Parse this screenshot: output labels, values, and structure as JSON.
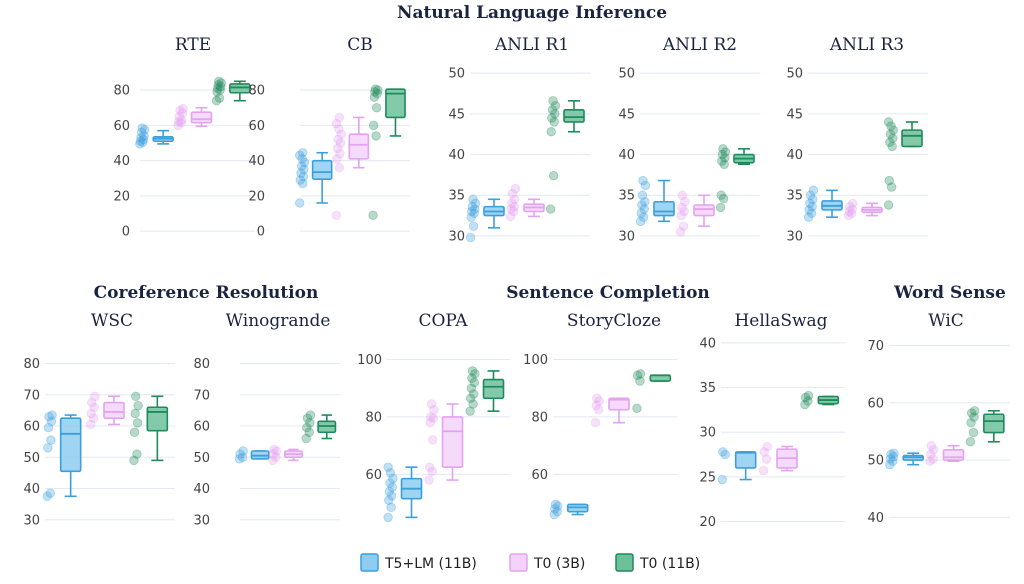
{
  "chart_data": {
    "type": "box",
    "groups": [
      {
        "title": "Natural Language Inference"
      },
      {
        "title": "Coreference Resolution"
      },
      {
        "title": "Sentence Completion"
      },
      {
        "title": "Word Sense"
      }
    ],
    "series": [
      {
        "name": "T5+LM (11B)",
        "color": "#3b9fdc",
        "fill": "#8ecdf0"
      },
      {
        "name": "T0 (3B)",
        "color": "#e3a3f0",
        "fill": "#f3d3fa"
      },
      {
        "name": "T0 (11B)",
        "color": "#1f8a5b",
        "fill": "#6cc19b"
      }
    ],
    "panels": [
      {
        "title": "RTE",
        "yticks": [
          0,
          20,
          40,
          60,
          80
        ],
        "ylim": [
          -5,
          88
        ],
        "boxes": [
          {
            "series": 0,
            "min": 49.5,
            "q1": 51,
            "median": 52.5,
            "q3": 53.5,
            "max": 57,
            "points": [
              49.5,
              50.5,
              51,
              52,
              53,
              54,
              56,
              57.5,
              58.5
            ]
          },
          {
            "series": 1,
            "min": 59.5,
            "q1": 61.5,
            "median": 63.5,
            "q3": 67.5,
            "max": 70,
            "points": [
              60,
              61.5,
              62,
              63,
              65,
              67,
              68.5,
              69.5
            ]
          },
          {
            "series": 2,
            "min": 74,
            "q1": 78.5,
            "median": 81.5,
            "q3": 83.5,
            "max": 85,
            "points": [
              74,
              75.5,
              79,
              80,
              81,
              82,
              83,
              84,
              85
            ]
          }
        ]
      },
      {
        "title": "CB",
        "yticks": [
          0,
          20,
          40,
          60,
          80
        ],
        "ylim": [
          -5,
          88
        ],
        "boxes": [
          {
            "series": 0,
            "min": 16,
            "q1": 29.5,
            "median": 33.5,
            "q3": 40,
            "max": 44.5,
            "points": [
              16,
              27,
              29,
              31,
              33,
              35,
              37,
              39,
              41,
              43,
              44.5
            ]
          },
          {
            "series": 1,
            "min": 36,
            "q1": 41,
            "median": 49,
            "q3": 55,
            "max": 64.5,
            "points": [
              9,
              36,
              41,
              44,
              47,
              50,
              52,
              55,
              58,
              61,
              64.5
            ]
          },
          {
            "series": 2,
            "min": 54,
            "q1": 64.5,
            "median": 78,
            "q3": 80.5,
            "max": 80.5,
            "points": [
              9,
              54,
              60,
              70,
              76,
              78,
              79,
              80,
              80.5
            ]
          }
        ]
      },
      {
        "title": "ANLI R1",
        "yticks": [
          30,
          35,
          40,
          45,
          50
        ],
        "ylim": [
          29.5,
          51
        ],
        "boxes": [
          {
            "series": 0,
            "min": 31,
            "q1": 32.5,
            "median": 33,
            "q3": 33.6,
            "max": 34.5,
            "points": [
              29.8,
              31.2,
              32.3,
              32.8,
              33,
              33.3,
              33.6,
              34,
              34.5
            ]
          },
          {
            "series": 1,
            "min": 32.4,
            "q1": 33,
            "median": 33.5,
            "q3": 33.9,
            "max": 34.5,
            "points": [
              32.4,
              33,
              33.3,
              33.6,
              34,
              34.5,
              35.2,
              35.8
            ]
          },
          {
            "series": 2,
            "min": 42.8,
            "q1": 44,
            "median": 44.6,
            "q3": 45.5,
            "max": 46.6,
            "points": [
              33.3,
              37.4,
              42.8,
              44,
              44.5,
              45,
              45.5,
              46,
              46.6
            ]
          }
        ]
      },
      {
        "title": "ANLI R2",
        "yticks": [
          30,
          35,
          40,
          45,
          50
        ],
        "ylim": [
          29.5,
          51
        ],
        "boxes": [
          {
            "series": 0,
            "min": 31.8,
            "q1": 32.5,
            "median": 33,
            "q3": 34.2,
            "max": 36.8,
            "points": [
              31.8,
              32.3,
              32.8,
              33.3,
              33.8,
              34.2,
              35,
              36.2,
              36.8
            ]
          },
          {
            "series": 1,
            "min": 31.2,
            "q1": 32.5,
            "median": 33.3,
            "q3": 33.8,
            "max": 35,
            "points": [
              30.5,
              31.2,
              32.5,
              33,
              33.5,
              34.2,
              35
            ]
          },
          {
            "series": 2,
            "min": 38.8,
            "q1": 39,
            "median": 39.5,
            "q3": 40,
            "max": 40.7,
            "points": [
              33.5,
              34.6,
              35,
              38.8,
              39.2,
              39.6,
              40,
              40.3,
              40.7
            ]
          }
        ]
      },
      {
        "title": "ANLI R3",
        "yticks": [
          30,
          35,
          40,
          45,
          50
        ],
        "ylim": [
          29.5,
          51
        ],
        "boxes": [
          {
            "series": 0,
            "min": 32.3,
            "q1": 33.2,
            "median": 33.7,
            "q3": 34.3,
            "max": 35.6,
            "points": [
              32.3,
              32.8,
              33.2,
              33.6,
              34,
              34.5,
              35,
              35.6
            ]
          },
          {
            "series": 1,
            "min": 32.5,
            "q1": 32.9,
            "median": 33.2,
            "q3": 33.5,
            "max": 34,
            "points": [
              32.5,
              32.8,
              33,
              33.3,
              33.6,
              34
            ]
          },
          {
            "series": 2,
            "min": 41,
            "q1": 41,
            "median": 42.3,
            "q3": 43,
            "max": 44,
            "points": [
              33.8,
              36,
              36.8,
              41,
              41.5,
              42,
              42.5,
              43,
              43.5,
              44
            ]
          }
        ]
      },
      {
        "title": "WSC",
        "yticks": [
          30,
          40,
          50,
          60,
          70,
          80
        ],
        "ylim": [
          28,
          84
        ],
        "boxes": [
          {
            "series": 0,
            "min": 37.5,
            "q1": 45.5,
            "median": 57.5,
            "q3": 62.5,
            "max": 63.5,
            "points": [
              37.5,
              38.5,
              53,
              55.5,
              59.5,
              61.5,
              63,
              63.5
            ]
          },
          {
            "series": 1,
            "min": 60.5,
            "q1": 62.5,
            "median": 64.5,
            "q3": 67.5,
            "max": 69.5,
            "points": [
              60.5,
              62.5,
              64,
              66,
              67.5,
              69.5
            ]
          },
          {
            "series": 2,
            "min": 49,
            "q1": 58.5,
            "median": 64.5,
            "q3": 66,
            "max": 69.5,
            "points": [
              49,
              51,
              58,
              61,
              64,
              66.5,
              69.5
            ]
          }
        ]
      },
      {
        "title": "Winogrande",
        "yticks": [
          30,
          40,
          50,
          60,
          70,
          80
        ],
        "ylim": [
          28,
          84
        ],
        "boxes": [
          {
            "series": 0,
            "min": 49.5,
            "q1": 49.5,
            "median": 50.5,
            "q3": 52,
            "max": 52,
            "points": [
              49.5,
              50,
              51,
              52
            ]
          },
          {
            "series": 1,
            "min": 49,
            "q1": 50,
            "median": 51,
            "q3": 52,
            "max": 52.5,
            "points": [
              49,
              50,
              51,
              52,
              52.5
            ]
          },
          {
            "series": 2,
            "min": 56,
            "q1": 58,
            "median": 60,
            "q3": 61.5,
            "max": 63.5,
            "points": [
              56,
              58,
              59.5,
              61,
              62.5,
              63.5
            ]
          }
        ]
      },
      {
        "title": "COPA",
        "yticks": [
          60,
          80,
          100
        ],
        "ylim": [
          42,
          104
        ],
        "boxes": [
          {
            "series": 0,
            "min": 45,
            "q1": 51.5,
            "median": 55,
            "q3": 58.5,
            "max": 62.5,
            "points": [
              45,
              48.5,
              51,
              52.5,
              54,
              55.5,
              57,
              58.5,
              60.5,
              62.5
            ]
          },
          {
            "series": 1,
            "min": 58,
            "q1": 62.5,
            "median": 75,
            "q3": 80,
            "max": 84.5,
            "points": [
              58,
              61,
              62.5,
              72,
              78,
              79.5,
              80,
              82.5,
              84.5
            ]
          },
          {
            "series": 2,
            "min": 82,
            "q1": 86.5,
            "median": 90.5,
            "q3": 93,
            "max": 96,
            "points": [
              82,
              84.5,
              86.5,
              88,
              90,
              92,
              93.5,
              95,
              96
            ]
          }
        ]
      },
      {
        "title": "StoryCloze",
        "yticks": [
          60,
          80,
          100
        ],
        "ylim": [
          42,
          104
        ],
        "boxes": [
          {
            "series": 0,
            "min": 46,
            "q1": 47,
            "median": 48.5,
            "q3": 49.5,
            "max": 49.5,
            "points": [
              46,
              47,
              48,
              49,
              49.5
            ]
          },
          {
            "series": 1,
            "min": 78,
            "q1": 82.5,
            "median": 86,
            "q3": 86.5,
            "max": 86.5,
            "points": [
              78,
              82.5,
              84,
              85.5,
              86.5
            ]
          },
          {
            "series": 2,
            "min": 92.5,
            "q1": 92.5,
            "median": 94.5,
            "q3": 94.5,
            "max": 94.5,
            "points": [
              83,
              92.5,
              94.5,
              95
            ]
          }
        ]
      },
      {
        "title": "HellaSwag",
        "yticks": [
          20,
          25,
          30,
          35,
          40
        ],
        "ylim": [
          19.5,
          41
        ],
        "boxes": [
          {
            "series": 0,
            "min": 24.7,
            "q1": 26,
            "median": 27.7,
            "q3": 27.8,
            "max": 27.8,
            "points": [
              24.7,
              27.5,
              27.8
            ]
          },
          {
            "series": 1,
            "min": 25.7,
            "q1": 26,
            "median": 27.1,
            "q3": 28.1,
            "max": 28.4,
            "points": [
              25.7,
              27,
              27.8,
              28.4
            ]
          },
          {
            "series": 2,
            "min": 33.1,
            "q1": 33.2,
            "median": 33.6,
            "q3": 34,
            "max": 34,
            "points": [
              33.1,
              33.5,
              33.9,
              34.1
            ]
          }
        ]
      },
      {
        "title": "WiC",
        "yticks": [
          40,
          50,
          60,
          70
        ],
        "ylim": [
          38.5,
          72
        ],
        "boxes": [
          {
            "series": 0,
            "min": 49.2,
            "q1": 50,
            "median": 50.5,
            "q3": 50.8,
            "max": 51.2,
            "points": [
              49.2,
              49.8,
              50.2,
              50.6,
              51,
              51.2
            ]
          },
          {
            "series": 1,
            "min": 49.8,
            "q1": 50,
            "median": 50.5,
            "q3": 51.8,
            "max": 52.5,
            "points": [
              49.8,
              50.2,
              51,
              51.8,
              52.5
            ]
          },
          {
            "series": 2,
            "min": 53.2,
            "q1": 54.8,
            "median": 56.8,
            "q3": 58,
            "max": 58.6,
            "points": [
              53.2,
              54.8,
              56.5,
              57.5,
              58.2,
              58.6
            ]
          }
        ]
      }
    ]
  }
}
